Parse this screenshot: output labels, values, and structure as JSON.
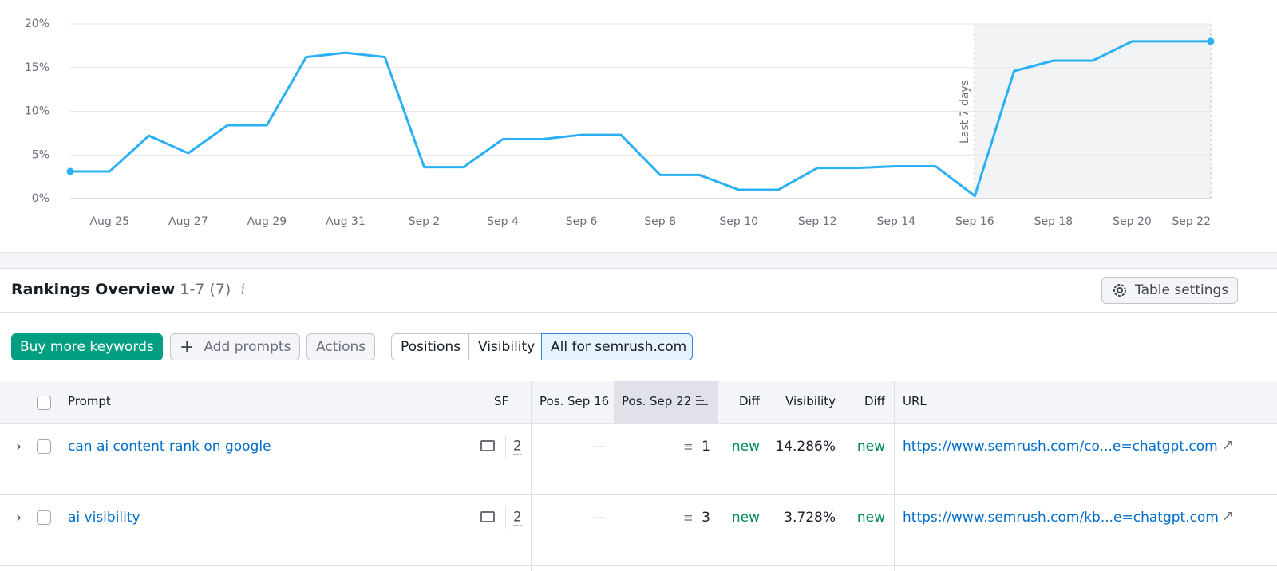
{
  "chart_data": {
    "type": "line",
    "categories": [
      null,
      "Aug 25",
      null,
      "Aug 27",
      null,
      "Aug 29",
      null,
      "Aug 31",
      null,
      "Sep 2",
      null,
      "Sep 4",
      null,
      "Sep 6",
      null,
      "Sep 8",
      null,
      "Sep 10",
      null,
      "Sep 12",
      null,
      "Sep 14",
      null,
      "Sep 16",
      null,
      "Sep 18",
      null,
      "Sep 20",
      null,
      "Sep 22"
    ],
    "values": [
      3.1,
      3.1,
      7.2,
      5.2,
      8.4,
      8.4,
      16.2,
      16.7,
      16.2,
      3.6,
      3.6,
      6.8,
      6.8,
      7.3,
      7.3,
      2.7,
      2.7,
      1.0,
      1.0,
      3.5,
      3.5,
      3.7,
      3.7,
      0.3,
      14.6,
      15.8,
      15.8,
      18.0,
      18.0,
      18.0
    ],
    "color": "#2bb0f5",
    "ylim": [
      0,
      20
    ],
    "yticks": [
      {
        "value": 0,
        "label": "0%"
      },
      {
        "value": 5,
        "label": "5%"
      },
      {
        "value": 10,
        "label": "10%"
      },
      {
        "value": 15,
        "label": "15%"
      },
      {
        "value": 20,
        "label": "20%"
      }
    ],
    "grid": true,
    "annotation": "Last 7 days"
  },
  "section": {
    "title": "Rankings Overview",
    "range": "1-7 (7)",
    "settings_button": "Table settings"
  },
  "toolbar": {
    "buy": "Buy more keywords",
    "add": "Add prompts",
    "actions": "Actions",
    "tabs": [
      "Positions",
      "Visibility",
      "All for semrush.com"
    ]
  },
  "table": {
    "columns": [
      "Prompt",
      "SF",
      "Pos. Sep 16",
      "Pos. Sep 22",
      "Diff",
      "Visibility",
      "Diff",
      "URL"
    ],
    "rows": [
      [
        "can ai content rank on google",
        "2",
        "—",
        "1",
        "new",
        "14.286%",
        "new",
        "https://www.semrush.com/co...e=chatgpt.com"
      ],
      [
        "ai visibility",
        "2",
        "—",
        "3",
        "new",
        "3.728%",
        "new",
        "https://www.semrush.com/kb...e=chatgpt.com"
      ]
    ]
  }
}
